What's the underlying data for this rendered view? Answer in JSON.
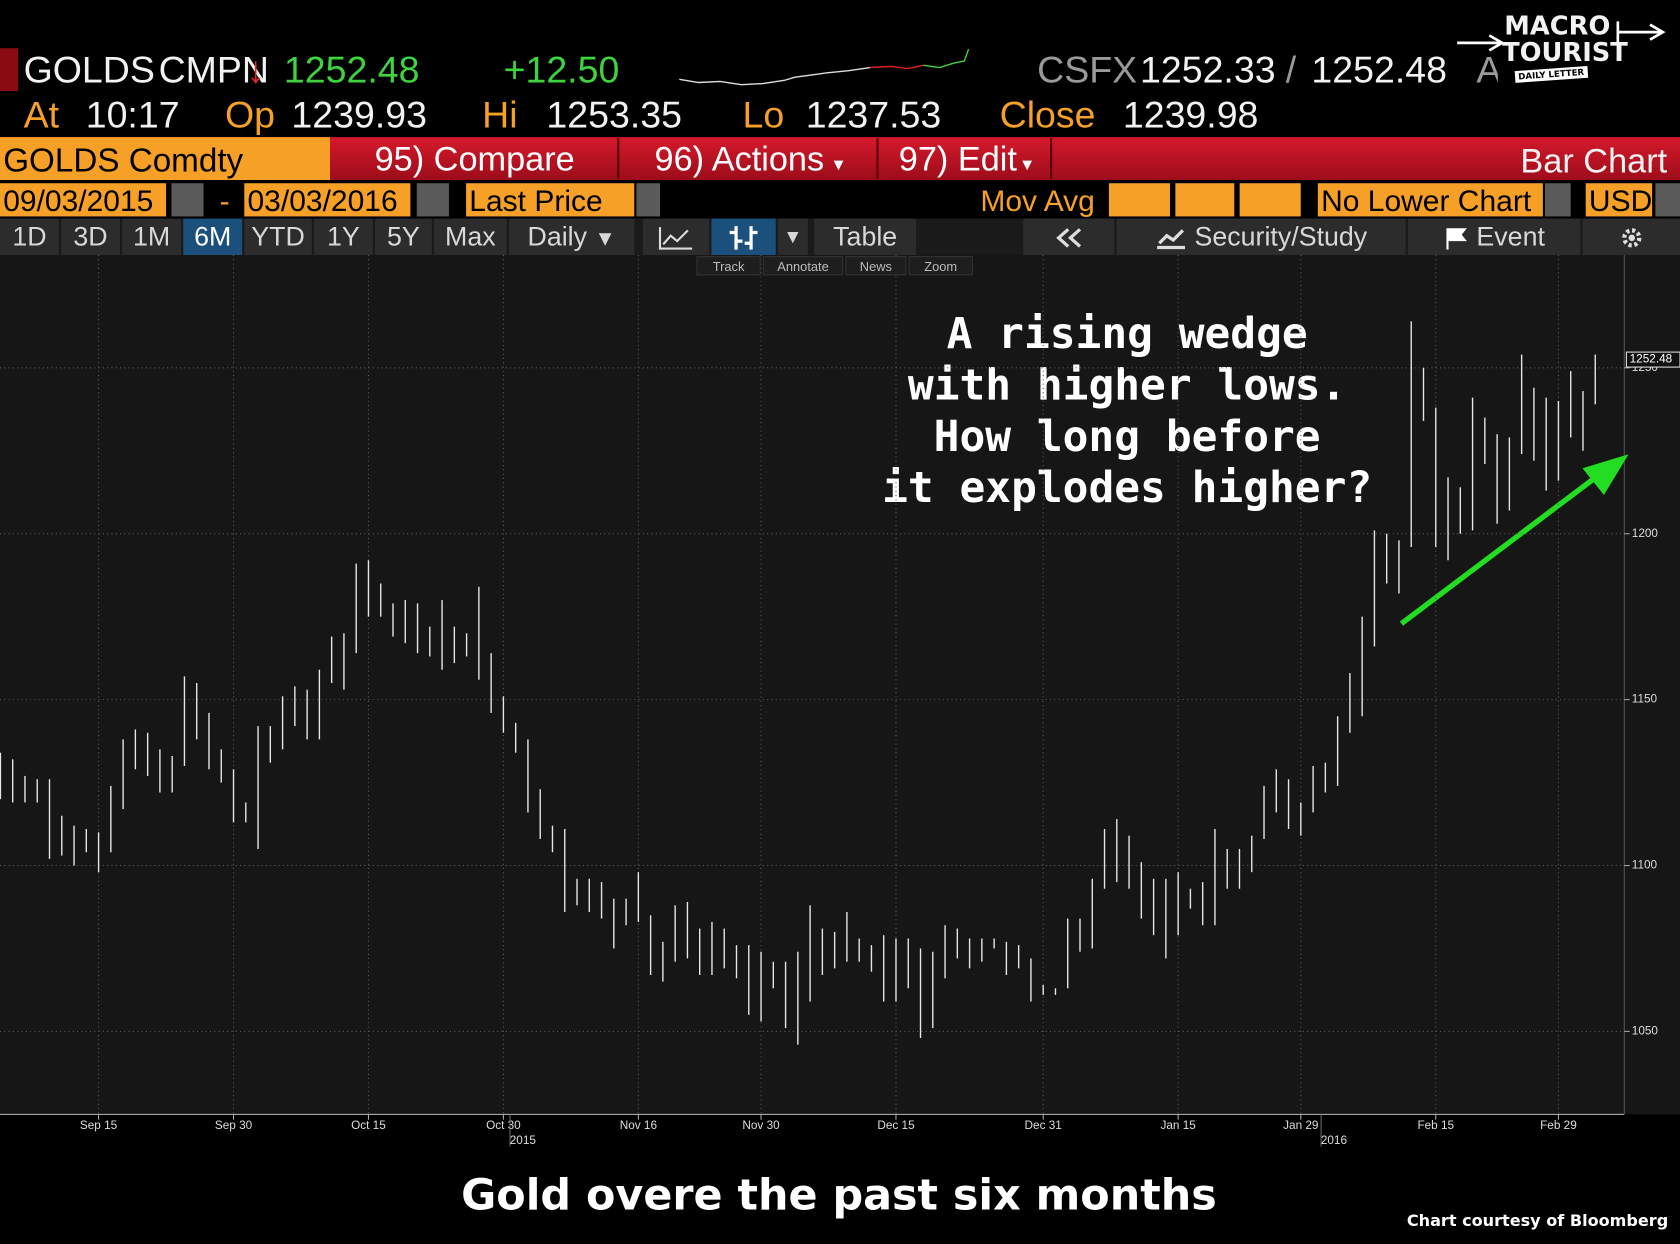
{
  "header": {
    "ticker": "GOLDS",
    "source": "CMPN",
    "arrow": "↓",
    "last": "1252.48",
    "change": "+12.50",
    "feed": "CSFX",
    "bid": "1252.33",
    "sep": "/",
    "ask": "1252.48",
    "cut": "AN",
    "logo_1": "MACRO",
    "logo_2": "TOURIST",
    "logo_3": "DAILY LETTER"
  },
  "quote": {
    "at_label": "At",
    "time": "10:17",
    "open_label": "Op",
    "open": "1239.93",
    "hi_label": "Hi",
    "hi": "1253.35",
    "lo_label": "Lo",
    "lo": "1237.53",
    "close_label": "Close",
    "close": "1239.98"
  },
  "toolbar": {
    "security": "GOLDS Comdty",
    "compare": "95) Compare",
    "actions": "96) Actions",
    "edit": "97) Edit",
    "view": "Bar Chart",
    "start": "09/03/2015",
    "dash": "-",
    "end": "03/03/2016",
    "field": "Last Price",
    "mov_avg": "Mov Avg",
    "lower": "No Lower Chart",
    "currency": "USD",
    "periods": [
      "1D",
      "3D",
      "1M",
      "6M",
      "YTD",
      "1Y",
      "5Y",
      "Max"
    ],
    "frequency": "Daily",
    "table": "Table",
    "security_study": "Security/Study",
    "event": "Event",
    "tools": [
      "Track",
      "Annotate",
      "News",
      "Zoom"
    ]
  },
  "chart_data": {
    "type": "ohlc",
    "color": "#e6e6e6",
    "categories": [
      null,
      null,
      null,
      null,
      null,
      null,
      null,
      null,
      "Sep 15",
      null,
      null,
      null,
      null,
      null,
      null,
      null,
      null,
      null,
      null,
      "Sep 30",
      null,
      null,
      null,
      null,
      null,
      null,
      null,
      null,
      null,
      null,
      "Oct 15",
      null,
      null,
      null,
      null,
      null,
      null,
      null,
      null,
      null,
      null,
      "Oct 30",
      null,
      null,
      null,
      null,
      null,
      null,
      null,
      null,
      null,
      null,
      "Nov 16",
      null,
      null,
      null,
      null,
      null,
      null,
      null,
      null,
      null,
      "Nov 30",
      null,
      null,
      null,
      null,
      null,
      null,
      null,
      null,
      null,
      null,
      "Dec 15",
      null,
      null,
      null,
      null,
      null,
      null,
      null,
      null,
      null,
      null,
      null,
      "Dec 31",
      null,
      null,
      null,
      null,
      null,
      null,
      null,
      null,
      null,
      null,
      "Jan 15",
      null,
      null,
      null,
      null,
      null,
      null,
      null,
      null,
      null,
      "Jan 29",
      null,
      null,
      null,
      null,
      null,
      null,
      null,
      null,
      null,
      null,
      "Feb 15",
      null,
      null,
      null,
      null,
      null,
      null,
      null,
      null,
      null,
      "Feb 29",
      null,
      null,
      null
    ],
    "years": [
      "2015",
      "2016"
    ],
    "high": [
      1134,
      1132,
      1127,
      1126,
      1126,
      1115,
      1112,
      1111,
      1110,
      1124,
      1138,
      1141,
      1140,
      1135,
      1133,
      1157,
      1155,
      1146,
      1135,
      1129,
      1119,
      1142,
      1142,
      1151,
      1154,
      1153,
      1159,
      1169,
      1170,
      1191,
      1192,
      1185,
      1179,
      1180,
      1179,
      1172,
      1180,
      1172,
      1170,
      1184,
      1164,
      1151,
      1143,
      1138,
      1123,
      1112,
      1111,
      1096,
      1096,
      1095,
      1090,
      1090,
      1098,
      1085,
      1077,
      1088,
      1089,
      1081,
      1083,
      1081,
      1076,
      1076,
      1074,
      1071,
      1071,
      1074,
      1088,
      1081,
      1080,
      1086,
      1078,
      1076,
      1079,
      1078,
      1078,
      1075,
      1074,
      1082,
      1081,
      1078,
      1078,
      1078,
      1077,
      1076,
      1072,
      1064,
      1063,
      1084,
      1084,
      1096,
      1111,
      1114,
      1109,
      1101,
      1096,
      1096,
      1098,
      1093,
      1095,
      1111,
      1105,
      1105,
      1109,
      1124,
      1129,
      1126,
      1119,
      1130,
      1131,
      1145,
      1158,
      1175,
      1201,
      1200,
      1198,
      1264,
      1250,
      1238,
      1217,
      1214,
      1241,
      1235,
      1230,
      1229,
      1254,
      1244,
      1241,
      1240,
      1249,
      1243,
      1254
    ],
    "low": [
      1120,
      1119,
      1119,
      1119,
      1102,
      1103,
      1100,
      1104,
      1098,
      1104,
      1117,
      1129,
      1127,
      1122,
      1122,
      1130,
      1138,
      1129,
      1125,
      1113,
      1113,
      1105,
      1131,
      1135,
      1142,
      1138,
      1138,
      1155,
      1153,
      1164,
      1175,
      1175,
      1169,
      1167,
      1164,
      1163,
      1159,
      1161,
      1163,
      1156,
      1146,
      1140,
      1134,
      1116,
      1108,
      1104,
      1086,
      1088,
      1086,
      1084,
      1075,
      1082,
      1083,
      1067,
      1065,
      1071,
      1072,
      1067,
      1067,
      1069,
      1066,
      1055,
      1053,
      1063,
      1051,
      1046,
      1059,
      1067,
      1069,
      1071,
      1071,
      1068,
      1059,
      1059,
      1063,
      1048,
      1051,
      1066,
      1072,
      1069,
      1071,
      1075,
      1067,
      1069,
      1059,
      1061,
      1061,
      1063,
      1074,
      1075,
      1093,
      1095,
      1093,
      1084,
      1079,
      1072,
      1079,
      1087,
      1082,
      1082,
      1093,
      1093,
      1098,
      1108,
      1116,
      1111,
      1109,
      1116,
      1122,
      1124,
      1140,
      1145,
      1166,
      1185,
      1182,
      1196,
      1234,
      1196,
      1192,
      1200,
      1201,
      1221,
      1203,
      1207,
      1224,
      1222,
      1213,
      1216,
      1229,
      1225,
      1239
    ],
    "last_value": 1252.48,
    "ylim": [
      1025,
      1284
    ],
    "yticks": [
      1050,
      1100,
      1150,
      1200,
      1250
    ],
    "grid": true,
    "annotation": [
      "A rising wedge",
      "with higher lows.",
      "How long before",
      "it explodes higher?"
    ]
  },
  "footer": {
    "caption": "Gold overe the past six months",
    "credit": "Chart courtesy of Bloomberg"
  }
}
